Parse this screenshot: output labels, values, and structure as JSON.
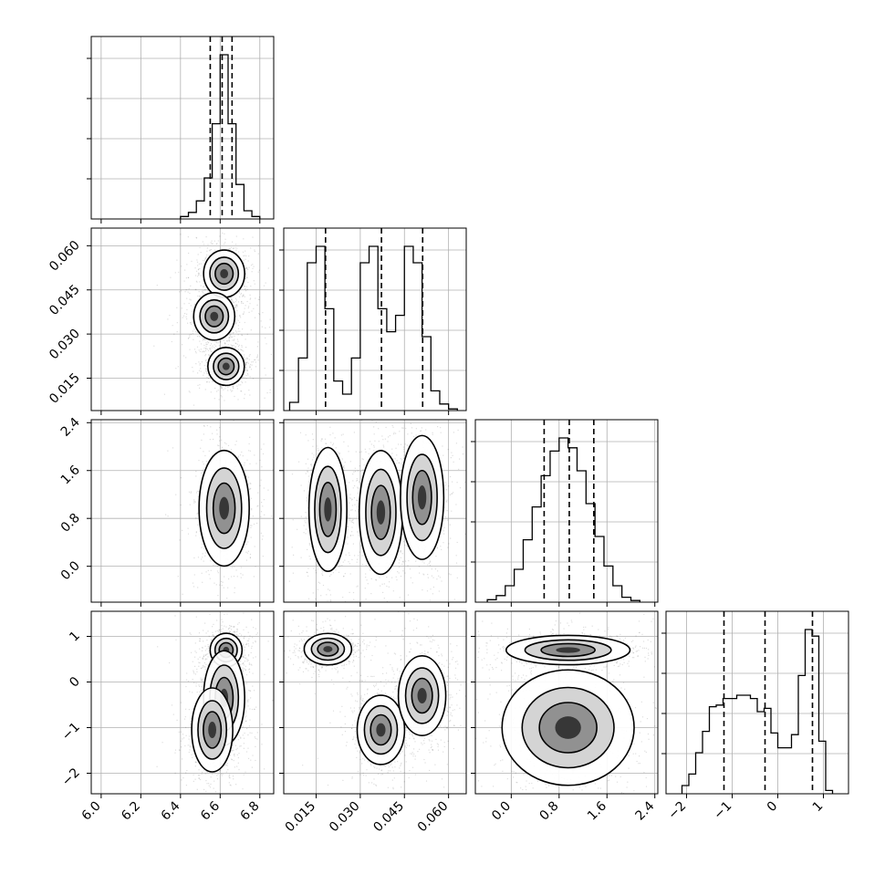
{
  "chart_data": {
    "type": "corner",
    "grid": true,
    "variables": [
      {
        "ticks": [
          "6.0",
          "6.2",
          "6.4",
          "6.6",
          "6.8"
        ],
        "tick_values": [
          6.0,
          6.2,
          6.4,
          6.6,
          6.8
        ],
        "range": [
          5.95,
          6.87
        ],
        "quantiles": [
          6.55,
          6.61,
          6.66
        ],
        "histogram": {
          "bin_edges": [
            6.4,
            6.44,
            6.48,
            6.52,
            6.56,
            6.6,
            6.64,
            6.68,
            6.72,
            6.76,
            6.8
          ],
          "counts": [
            0.015,
            0.04,
            0.11,
            0.25,
            0.58,
            1.0,
            0.58,
            0.21,
            0.05,
            0.015
          ]
        }
      },
      {
        "ticks": [
          "0.015",
          "0.030",
          "0.045",
          "0.060"
        ],
        "tick_values": [
          0.015,
          0.03,
          0.045,
          0.06
        ],
        "range": [
          0.004,
          0.066
        ],
        "quantiles": [
          0.0182,
          0.0372,
          0.0512
        ],
        "histogram": {
          "bin_edges": [
            0.006,
            0.009,
            0.012,
            0.015,
            0.018,
            0.021,
            0.024,
            0.027,
            0.03,
            0.033,
            0.036,
            0.039,
            0.042,
            0.045,
            0.048,
            0.051,
            0.054,
            0.057,
            0.06,
            0.063
          ],
          "counts": [
            0.05,
            0.32,
            0.9,
            1.0,
            0.62,
            0.18,
            0.1,
            0.32,
            0.9,
            1.0,
            0.62,
            0.48,
            0.58,
            1.0,
            0.9,
            0.45,
            0.12,
            0.04,
            0.01
          ]
        }
      },
      {
        "ticks": [
          "0.0",
          "0.8",
          "1.6",
          "2.4"
        ],
        "tick_values": [
          0.0,
          0.8,
          1.6,
          2.4
        ],
        "range": [
          -0.6,
          2.45
        ],
        "quantiles": [
          0.55,
          0.97,
          1.38
        ],
        "histogram": {
          "bin_edges": [
            -0.4,
            -0.25,
            -0.1,
            0.05,
            0.2,
            0.35,
            0.5,
            0.65,
            0.8,
            0.95,
            1.1,
            1.25,
            1.4,
            1.55,
            1.7,
            1.85,
            2.0,
            2.15
          ],
          "counts": [
            0.015,
            0.04,
            0.1,
            0.2,
            0.38,
            0.58,
            0.77,
            0.92,
            1.0,
            0.94,
            0.8,
            0.6,
            0.4,
            0.22,
            0.1,
            0.03,
            0.01
          ]
        }
      },
      {
        "ticks": [
          "−2",
          "−1",
          "0",
          "1"
        ],
        "tick_values": [
          -2,
          -1,
          0,
          1
        ],
        "range": [
          -2.45,
          1.55
        ],
        "quantiles": [
          -1.18,
          -0.28,
          0.76
        ],
        "histogram": {
          "bin_edges": [
            -2.1,
            -1.95,
            -1.8,
            -1.65,
            -1.5,
            -1.35,
            -1.2,
            -1.05,
            -0.9,
            -0.75,
            -0.6,
            -0.45,
            -0.3,
            -0.15,
            0.0,
            0.15,
            0.3,
            0.45,
            0.6,
            0.75,
            0.9,
            1.05,
            1.2
          ],
          "counts": [
            0.05,
            0.12,
            0.25,
            0.38,
            0.53,
            0.54,
            0.58,
            0.58,
            0.6,
            0.6,
            0.58,
            0.5,
            0.52,
            0.37,
            0.28,
            0.28,
            0.36,
            0.72,
            1.0,
            0.96,
            0.32,
            0.02
          ]
        }
      }
    ],
    "density_clusters": [
      {
        "x": 0,
        "y": 1,
        "blobs": [
          [
            6.62,
            0.0505,
            0.045,
            0.0035
          ],
          [
            6.57,
            0.036,
            0.045,
            0.0035
          ],
          [
            6.63,
            0.019,
            0.04,
            0.0028
          ]
        ]
      },
      {
        "x": 0,
        "y": 2,
        "blobs": [
          [
            6.62,
            0.97,
            0.055,
            0.42
          ]
        ]
      },
      {
        "x": 0,
        "y": 3,
        "blobs": [
          [
            6.63,
            0.7,
            0.035,
            0.16
          ],
          [
            6.62,
            -0.35,
            0.045,
            0.45
          ],
          [
            6.56,
            -1.05,
            0.045,
            0.4
          ]
        ]
      },
      {
        "x": 1,
        "y": 2,
        "blobs": [
          [
            0.019,
            0.95,
            0.0028,
            0.45
          ],
          [
            0.037,
            0.9,
            0.0032,
            0.45
          ],
          [
            0.051,
            1.15,
            0.0032,
            0.45
          ]
        ]
      },
      {
        "x": 1,
        "y": 3,
        "blobs": [
          [
            0.019,
            0.72,
            0.0035,
            0.15
          ],
          [
            0.037,
            -1.05,
            0.0035,
            0.33
          ],
          [
            0.051,
            -0.3,
            0.0035,
            0.38
          ]
        ]
      },
      {
        "x": 2,
        "y": 3,
        "blobs": [
          [
            0.95,
            0.7,
            0.45,
            0.14
          ],
          [
            0.95,
            -1.0,
            0.48,
            0.55
          ]
        ]
      }
    ]
  }
}
